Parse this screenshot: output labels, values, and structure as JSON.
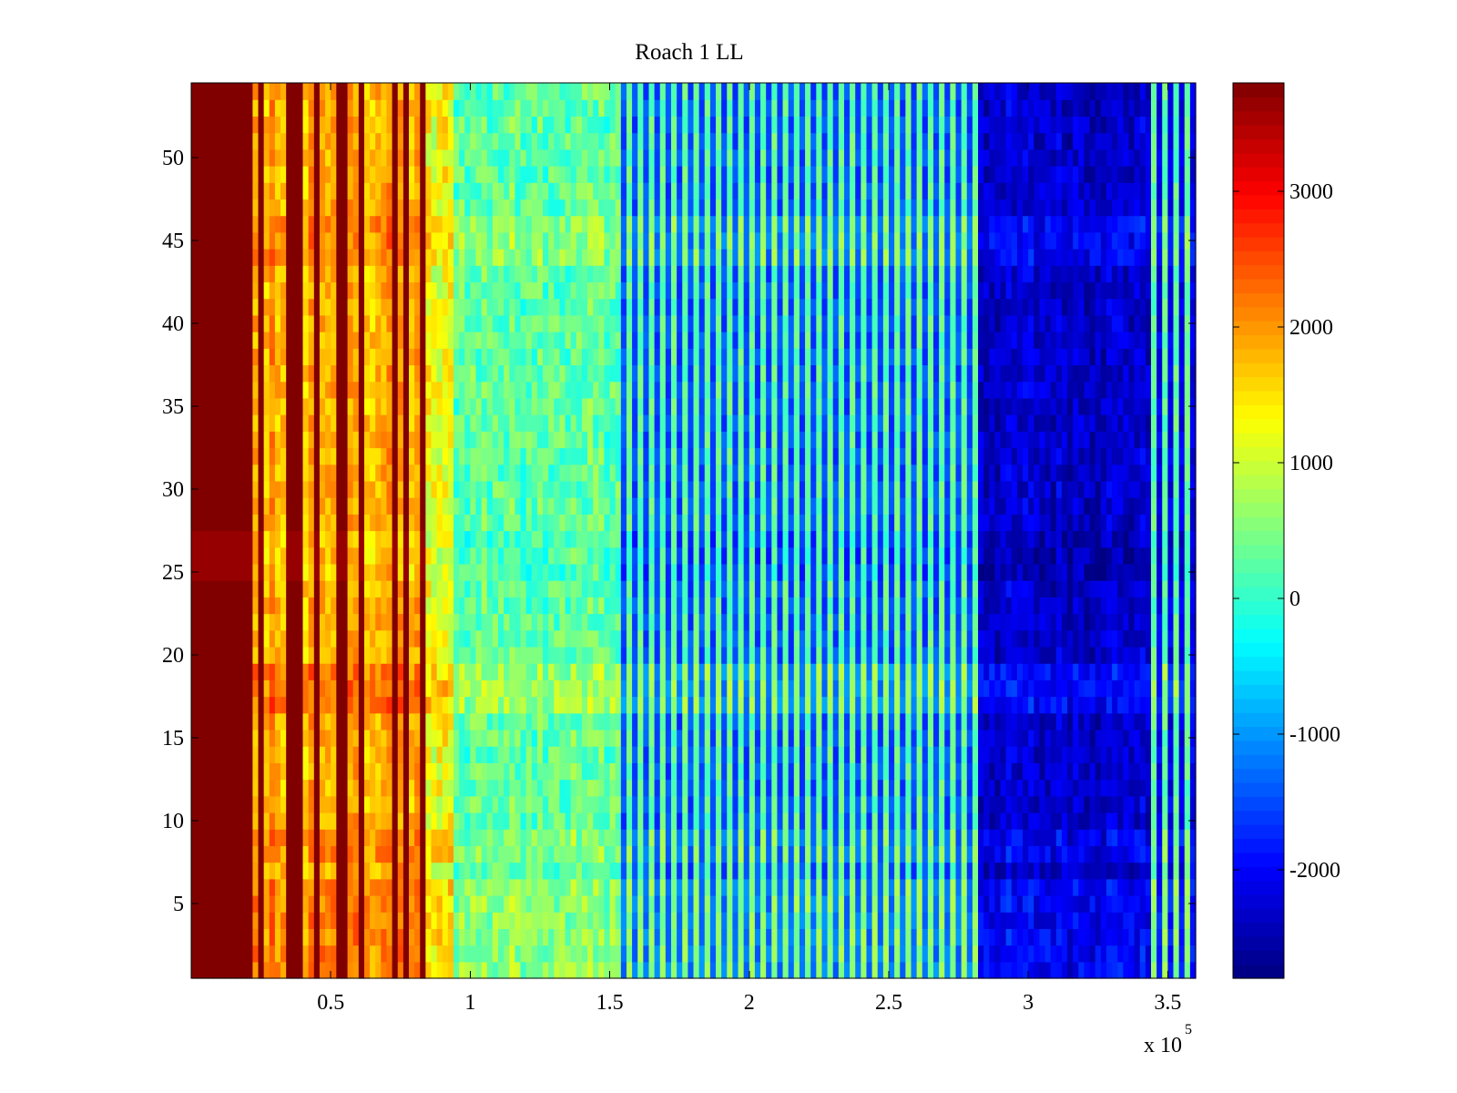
{
  "chart_data": {
    "type": "heatmap",
    "title": "Roach 1 LL",
    "xlabel": "",
    "ylabel": "",
    "x_multiplier_label": "x 10",
    "x_multiplier_exponent": "5",
    "xlim": [
      0,
      3.6
    ],
    "ylim": [
      0.5,
      54.5
    ],
    "x_ticks": [
      0.5,
      1,
      1.5,
      2,
      2.5,
      3,
      3.5
    ],
    "x_tick_labels": [
      "0.5",
      "1",
      "1.5",
      "2",
      "2.5",
      "3",
      "3.5"
    ],
    "y_ticks": [
      5,
      10,
      15,
      20,
      25,
      30,
      35,
      40,
      45,
      50
    ],
    "y_tick_labels": [
      "5",
      "10",
      "15",
      "20",
      "25",
      "30",
      "35",
      "40",
      "45",
      "50"
    ],
    "rows": 54,
    "colormap": "jet",
    "clim": [
      -2800,
      3800
    ],
    "colorbar": {
      "ticks": [
        -2000,
        -1000,
        0,
        1000,
        2000,
        3000
      ],
      "tick_labels": [
        "-2000",
        "-1000",
        "0",
        "1000",
        "2000",
        "3000"
      ]
    },
    "regions": [
      {
        "x_start": 0.0,
        "x_end": 0.19,
        "value": 3800,
        "noise": 0,
        "pattern": "solid"
      },
      {
        "x_start": 0.19,
        "x_end": 0.84,
        "value": 3300,
        "noise": 700,
        "pattern": "bright-stripes"
      },
      {
        "x_start": 0.84,
        "x_end": 0.95,
        "value": 1200,
        "noise": 500,
        "pattern": "noise"
      },
      {
        "x_start": 0.95,
        "x_end": 1.55,
        "value": 300,
        "noise": 450,
        "pattern": "noise"
      },
      {
        "x_start": 1.55,
        "x_end": 2.82,
        "value": -600,
        "noise": 900,
        "pattern": "alternating"
      },
      {
        "x_start": 2.82,
        "x_end": 3.43,
        "value": -2300,
        "noise": 350,
        "pattern": "noise"
      },
      {
        "x_start": 3.43,
        "x_end": 3.6,
        "value": -900,
        "noise": 1200,
        "pattern": "alternating"
      }
    ],
    "row_band_offsets": [
      {
        "y_start": 1,
        "y_end": 6,
        "offset": 300
      },
      {
        "y_start": 8,
        "y_end": 9,
        "offset": 250
      },
      {
        "y_start": 17,
        "y_end": 19,
        "offset": 400
      },
      {
        "y_start": 25,
        "y_end": 27,
        "offset": -150
      },
      {
        "y_start": 44,
        "y_end": 46,
        "offset": 300
      }
    ]
  }
}
